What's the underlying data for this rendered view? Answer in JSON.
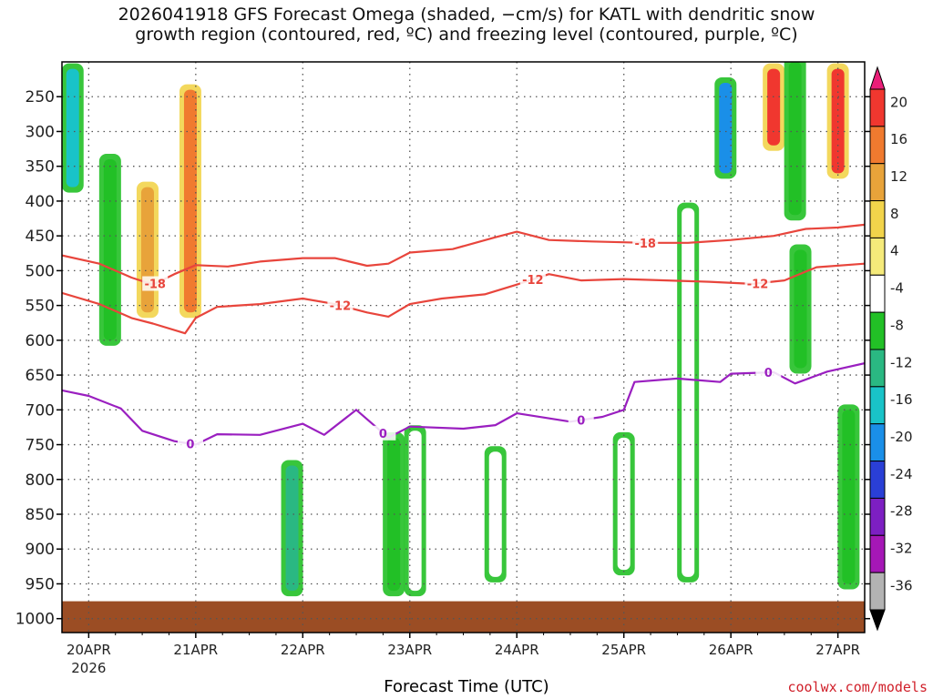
{
  "title": {
    "line1": "2026041918 GFS Forecast Omega (shaded, −cm/s) for KATL with dendritic snow",
    "line2": "growth region (contoured, red, ºC) and freezing level (contoured, purple, ºC)"
  },
  "credit": "coolwx.com/models",
  "chart_data": {
    "type": "heatmap",
    "title": "2026041918 GFS Forecast Omega (shaded, −cm/s) for KATL with dendritic snow growth region (contoured, red, ºC) and freezing level (contoured, purple, ºC)",
    "xlabel": "Forecast Time (UTC)",
    "ylabel": "",
    "x_ticks": [
      "20APR",
      "21APR",
      "22APR",
      "23APR",
      "24APR",
      "25APR",
      "26APR",
      "27APR"
    ],
    "x_year": "2026",
    "x_range_days": [
      19.75,
      27.25
    ],
    "y_ticks": [
      250,
      300,
      350,
      400,
      450,
      500,
      550,
      600,
      650,
      700,
      750,
      800,
      850,
      900,
      950,
      1000
    ],
    "y_range_hpa": [
      200,
      1020
    ],
    "colorbar": {
      "levels": [
        20,
        16,
        12,
        8,
        4,
        -4,
        -8,
        -12,
        -16,
        -20,
        -24,
        -28,
        -32,
        -36
      ],
      "colors": [
        "#ea1e78",
        "#f0372f",
        "#f07a2f",
        "#e8a33a",
        "#f2d44b",
        "#f5ea7a",
        "#ffffff",
        "#22c026",
        "#2ab882",
        "#19c3c8",
        "#1a8fe8",
        "#2a3fd6",
        "#7d1fc2",
        "#a517b6",
        "#b3b3b3",
        "#000000"
      ]
    },
    "contours": {
      "dgz_minus18": {
        "color": "#e8453c",
        "label": "-18",
        "points": [
          [
            19.75,
            478
          ],
          [
            20.1,
            490
          ],
          [
            20.4,
            510
          ],
          [
            20.6,
            520
          ],
          [
            20.8,
            505
          ],
          [
            21.0,
            492
          ],
          [
            21.3,
            494
          ],
          [
            21.6,
            487
          ],
          [
            22.0,
            482
          ],
          [
            22.3,
            482
          ],
          [
            22.6,
            493
          ],
          [
            22.8,
            490
          ],
          [
            23.0,
            474
          ],
          [
            23.4,
            469
          ],
          [
            23.8,
            452
          ],
          [
            24.0,
            444
          ],
          [
            24.3,
            456
          ],
          [
            24.7,
            458
          ],
          [
            25.2,
            460
          ],
          [
            25.6,
            460
          ],
          [
            26.0,
            456
          ],
          [
            26.4,
            450
          ],
          [
            26.7,
            440
          ],
          [
            27.0,
            438
          ],
          [
            27.25,
            434
          ]
        ]
      },
      "dgz_minus12": {
        "color": "#e8453c",
        "label": "-12",
        "points": [
          [
            19.75,
            532
          ],
          [
            20.1,
            548
          ],
          [
            20.4,
            568
          ],
          [
            20.6,
            576
          ],
          [
            20.9,
            590
          ],
          [
            21.0,
            568
          ],
          [
            21.2,
            552
          ],
          [
            21.6,
            548
          ],
          [
            22.0,
            540
          ],
          [
            22.3,
            548
          ],
          [
            22.6,
            560
          ],
          [
            22.8,
            566
          ],
          [
            23.0,
            548
          ],
          [
            23.3,
            540
          ],
          [
            23.7,
            534
          ],
          [
            24.0,
            520
          ],
          [
            24.3,
            505
          ],
          [
            24.6,
            514
          ],
          [
            25.0,
            512
          ],
          [
            25.4,
            514
          ],
          [
            25.8,
            516
          ],
          [
            26.2,
            519
          ],
          [
            26.5,
            514
          ],
          [
            26.8,
            495
          ],
          [
            27.25,
            490
          ]
        ]
      },
      "freezing_level_0C": {
        "color": "#9a1fc0",
        "label": "0",
        "points": [
          [
            19.75,
            672
          ],
          [
            20.0,
            680
          ],
          [
            20.3,
            698
          ],
          [
            20.5,
            730
          ],
          [
            20.8,
            745
          ],
          [
            21.0,
            750
          ],
          [
            21.2,
            735
          ],
          [
            21.6,
            736
          ],
          [
            22.0,
            720
          ],
          [
            22.2,
            736
          ],
          [
            22.5,
            700
          ],
          [
            22.8,
            740
          ],
          [
            23.0,
            724
          ],
          [
            23.5,
            727
          ],
          [
            23.8,
            722
          ],
          [
            24.0,
            705
          ],
          [
            24.5,
            717
          ],
          [
            24.8,
            710
          ],
          [
            25.0,
            700
          ],
          [
            25.1,
            660
          ],
          [
            25.5,
            655
          ],
          [
            25.9,
            660
          ],
          [
            26.0,
            648
          ],
          [
            26.4,
            646
          ],
          [
            26.6,
            662
          ],
          [
            26.9,
            645
          ],
          [
            27.25,
            633
          ]
        ]
      }
    },
    "omega_features": [
      {
        "day": 19.85,
        "p_top": 210,
        "p_bot": 380,
        "value": -20
      },
      {
        "day": 20.2,
        "p_top": 340,
        "p_bot": 600,
        "value": -12
      },
      {
        "day": 20.55,
        "p_top": 380,
        "p_bot": 560,
        "value": 8
      },
      {
        "day": 20.95,
        "p_top": 240,
        "p_bot": 560,
        "value": 12
      },
      {
        "day": 21.9,
        "p_top": 780,
        "p_bot": 960,
        "value": -16
      },
      {
        "day": 22.85,
        "p_top": 740,
        "p_bot": 960,
        "value": -12
      },
      {
        "day": 23.05,
        "p_top": 730,
        "p_bot": 960,
        "value": -8
      },
      {
        "day": 23.8,
        "p_top": 760,
        "p_bot": 940,
        "value": -8
      },
      {
        "day": 25.0,
        "p_top": 740,
        "p_bot": 930,
        "value": -8
      },
      {
        "day": 25.6,
        "p_top": 410,
        "p_bot": 940,
        "value": -8
      },
      {
        "day": 25.95,
        "p_top": 230,
        "p_bot": 360,
        "value": -24
      },
      {
        "day": 26.4,
        "p_top": 210,
        "p_bot": 320,
        "value": 16
      },
      {
        "day": 26.6,
        "p_top": 200,
        "p_bot": 420,
        "value": -12
      },
      {
        "day": 26.65,
        "p_top": 470,
        "p_bot": 640,
        "value": -12
      },
      {
        "day": 27.0,
        "p_top": 210,
        "p_bot": 360,
        "value": 16
      },
      {
        "day": 27.1,
        "p_top": 700,
        "p_bot": 950,
        "value": -12
      }
    ],
    "surface_band_hpa": [
      975,
      1020
    ],
    "grid": true
  }
}
